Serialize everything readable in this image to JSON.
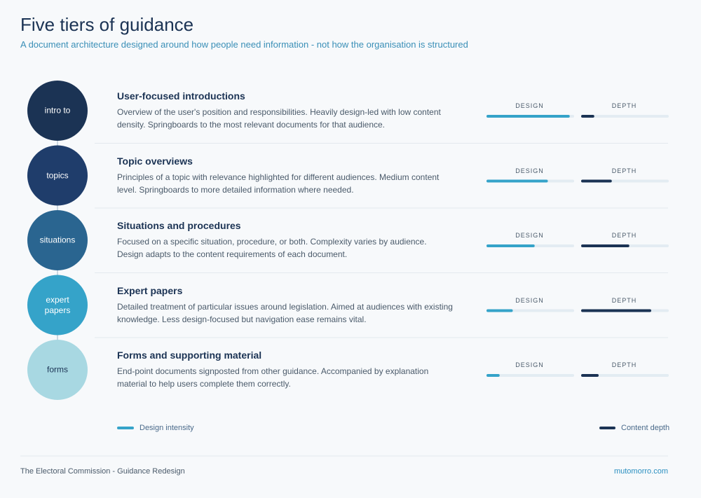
{
  "header": {
    "title": "Five tiers of guidance",
    "subtitle": "A document architecture designed around how people need information - not how the organisation is structured"
  },
  "bar_labels": {
    "design": "DESIGN",
    "depth": "DEPTH"
  },
  "xlim": [
    0,
    100
  ],
  "tiers": [
    {
      "badge": "intro to",
      "color": "#1b3354",
      "title": "User-focused introductions",
      "description": "Overview of the user's position and responsibilities. Heavily design-led with low content density. Springboards to the most relevant documents for that audience.",
      "design": 95,
      "depth": 15
    },
    {
      "badge": "topics",
      "color": "#1f3d6b",
      "title": "Topic overviews",
      "description": "Principles of a topic with relevance highlighted for different audiences. Medium content level. Springboards to more detailed information where needed.",
      "design": 70,
      "depth": 35
    },
    {
      "badge": "situations",
      "color": "#2a6590",
      "title": "Situations and procedures",
      "description": "Focused on a specific situation, procedure, or both. Complexity varies by audience. Design adapts to the content requirements of each document.",
      "design": 55,
      "depth": 55
    },
    {
      "badge": "expert papers",
      "color": "#35a3c9",
      "title": "Expert papers",
      "description": "Detailed treatment of particular issues around legislation. Aimed at audiences with existing knowledge. Less design-focused but navigation ease remains vital.",
      "design": 30,
      "depth": 80
    },
    {
      "badge": "forms",
      "color": "#a8d8e2",
      "title": "Forms and supporting material",
      "description": "End-point documents signposted from other guidance. Accompanied by explanation material to help users complete them correctly.",
      "design": 15,
      "depth": 20
    }
  ],
  "legend": {
    "design": {
      "label": "Design intensity",
      "color": "#35a3c9"
    },
    "depth": {
      "label": "Content depth",
      "color": "#1b3354"
    }
  },
  "footer": {
    "left": "The Electoral Commission - Guidance Redesign",
    "right": "mutomorro.com"
  }
}
